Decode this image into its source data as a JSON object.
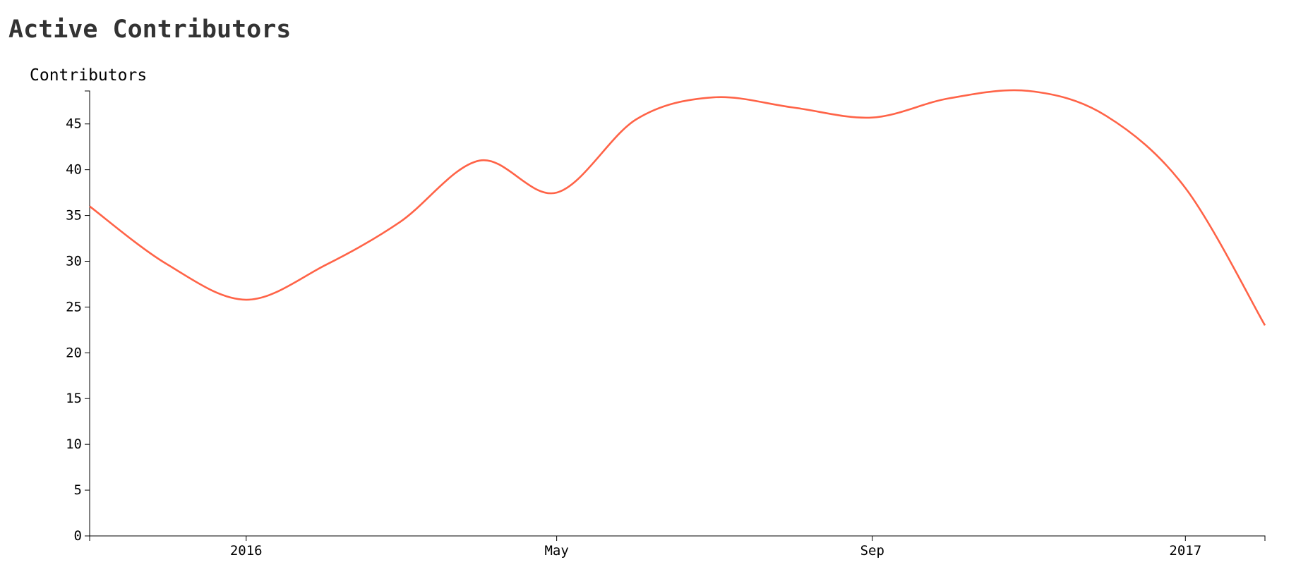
{
  "title": "Active Contributors",
  "chart_data": {
    "type": "line",
    "title": "Active Contributors",
    "xlabel": "",
    "ylabel": "Contributors",
    "x": [
      "2015-11-01",
      "2015-12-01",
      "2016-01-01",
      "2016-02-01",
      "2016-03-01",
      "2016-04-01",
      "2016-05-01",
      "2016-06-01",
      "2016-07-01",
      "2016-08-01",
      "2016-09-01",
      "2016-10-01",
      "2016-11-01",
      "2016-12-01",
      "2017-01-01",
      "2017-02-01"
    ],
    "series": [
      {
        "values": [
          36,
          29.7,
          25.8,
          29.6,
          34.3,
          41,
          37.5,
          45.5,
          47.9,
          46.8,
          45.7,
          47.8,
          48.6,
          45.9,
          38,
          23
        ],
        "color": "#ff6347"
      }
    ],
    "ylim": [
      0,
      48.6
    ],
    "xlim": [
      "2015-11-01",
      "2017-02-01"
    ],
    "y_ticks": [
      "0",
      "5",
      "10",
      "15",
      "20",
      "25",
      "30",
      "35",
      "40",
      "45"
    ],
    "x_ticks": [
      {
        "date": "2016-01-01",
        "label": "2016"
      },
      {
        "date": "2016-05-01",
        "label": "May"
      },
      {
        "date": "2016-09-01",
        "label": "Sep"
      },
      {
        "date": "2017-01-01",
        "label": "2017"
      }
    ],
    "grid": false,
    "curve": "smooth"
  }
}
